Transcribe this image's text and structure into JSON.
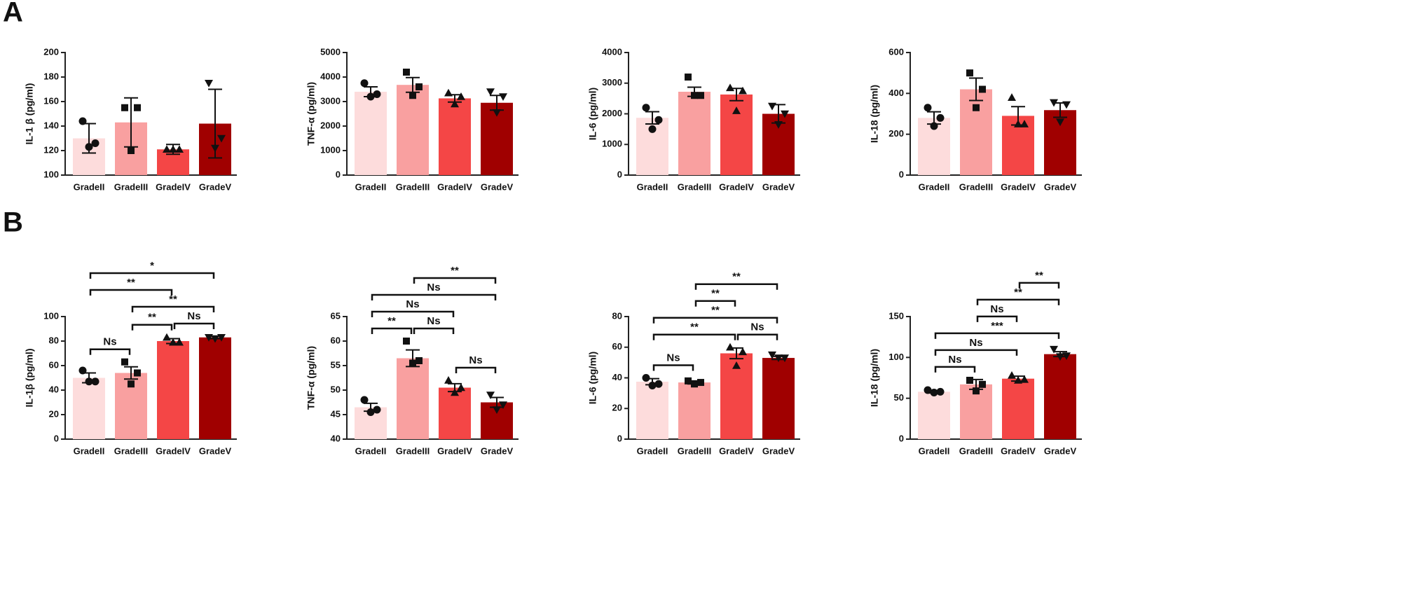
{
  "panel_labels": [
    "A",
    "B"
  ],
  "chart_data": [
    {
      "type": "bar",
      "ylabel": "IL-1 β (pg/ml)",
      "categories": [
        "GradeII",
        "GradeIII",
        "GradeIV",
        "GradeV"
      ],
      "colors": [
        "#fddcdc",
        "#f9a0a0",
        "#f44646",
        "#a00000"
      ],
      "markers": [
        "circle",
        "square",
        "triangle-up",
        "triangle-down"
      ],
      "values": [
        130,
        143,
        121,
        142
      ],
      "errors": [
        12,
        20,
        4,
        28
      ],
      "points": [
        [
          144,
          126,
          123
        ],
        [
          155,
          155,
          120
        ],
        [
          121,
          121,
          121
        ],
        [
          175,
          130,
          122
        ]
      ],
      "ylim": [
        100,
        200
      ],
      "yticks": [
        100,
        120,
        140,
        160,
        180,
        200
      ],
      "annotations": []
    },
    {
      "type": "bar",
      "ylabel": "TNF-α (pg/ml)",
      "categories": [
        "GradeII",
        "GradeIII",
        "GradeIV",
        "GradeV"
      ],
      "colors": [
        "#fddcdc",
        "#f9a0a0",
        "#f44646",
        "#a00000"
      ],
      "markers": [
        "circle",
        "square",
        "triangle-up",
        "triangle-down"
      ],
      "values": [
        3400,
        3680,
        3130,
        2950
      ],
      "errors": [
        200,
        300,
        150,
        300
      ],
      "points": [
        [
          3750,
          3300,
          3200
        ],
        [
          4200,
          3600,
          3250
        ],
        [
          3350,
          3200,
          2900
        ],
        [
          3400,
          3200,
          2550
        ]
      ],
      "ylim": [
        0,
        5000
      ],
      "yticks": [
        0,
        1000,
        2000,
        3000,
        4000,
        5000
      ],
      "annotations": []
    },
    {
      "type": "bar",
      "ylabel": "IL-6 (pg/ml)",
      "categories": [
        "GradeII",
        "GradeIII",
        "GradeIV",
        "GradeV"
      ],
      "colors": [
        "#fddcdc",
        "#f9a0a0",
        "#f44646",
        "#a00000"
      ],
      "markers": [
        "circle",
        "square",
        "triangle-up",
        "triangle-down"
      ],
      "values": [
        1870,
        2720,
        2630,
        2000
      ],
      "errors": [
        200,
        150,
        200,
        300
      ],
      "points": [
        [
          2200,
          1800,
          1500
        ],
        [
          3200,
          2600,
          2600
        ],
        [
          2850,
          2750,
          2100
        ],
        [
          2250,
          2000,
          1650
        ]
      ],
      "ylim": [
        0,
        4000
      ],
      "yticks": [
        0,
        1000,
        2000,
        3000,
        4000
      ],
      "annotations": []
    },
    {
      "type": "bar",
      "ylabel": "IL-18 (pg/ml)",
      "categories": [
        "GradeII",
        "GradeIII",
        "GradeIV",
        "GradeV"
      ],
      "colors": [
        "#fddcdc",
        "#f9a0a0",
        "#f44646",
        "#a00000"
      ],
      "markers": [
        "circle",
        "square",
        "triangle-up",
        "triangle-down"
      ],
      "values": [
        280,
        420,
        290,
        318
      ],
      "errors": [
        30,
        55,
        45,
        35
      ],
      "points": [
        [
          330,
          280,
          240
        ],
        [
          500,
          420,
          330
        ],
        [
          380,
          250,
          250
        ],
        [
          355,
          345,
          260
        ]
      ],
      "ylim": [
        0,
        600
      ],
      "yticks": [
        0,
        200,
        400,
        600
      ],
      "annotations": []
    },
    {
      "type": "bar",
      "ylabel": "IL-1β (pg/ml)",
      "categories": [
        "GradeII",
        "GradeIII",
        "GradeIV",
        "GradeV"
      ],
      "colors": [
        "#fddcdc",
        "#f9a0a0",
        "#f44646",
        "#a00000"
      ],
      "markers": [
        "circle",
        "square",
        "triangle-up",
        "triangle-down"
      ],
      "values": [
        50,
        54,
        80,
        83
      ],
      "errors": [
        4,
        5,
        2,
        1
      ],
      "points": [
        [
          56,
          47,
          47
        ],
        [
          63,
          54,
          45
        ],
        [
          83,
          79,
          79
        ],
        [
          83,
          83,
          82
        ]
      ],
      "ylim": [
        0,
        100
      ],
      "yticks": [
        0,
        20,
        40,
        60,
        80,
        100
      ],
      "annotations": [
        {
          "start": "GradeII",
          "end": "GradeIII",
          "label": "Ns"
        },
        {
          "start": "GradeIII",
          "end": "GradeIV",
          "label": "**"
        },
        {
          "start": "GradeIV",
          "end": "GradeV",
          "label": "Ns"
        },
        {
          "start": "GradeIII",
          "end": "GradeV",
          "label": "**"
        },
        {
          "start": "GradeII",
          "end": "GradeIV",
          "label": "**"
        },
        {
          "start": "GradeII",
          "end": "GradeV",
          "label": "*"
        }
      ]
    },
    {
      "type": "bar",
      "ylabel": "TNF-α (pg/ml)",
      "categories": [
        "GradeII",
        "GradeIII",
        "GradeIV",
        "GradeV"
      ],
      "colors": [
        "#fddcdc",
        "#f9a0a0",
        "#f44646",
        "#a00000"
      ],
      "markers": [
        "circle",
        "square",
        "triangle-up",
        "triangle-down"
      ],
      "values": [
        46.5,
        56.5,
        50.5,
        47.5
      ],
      "errors": [
        0.8,
        1.7,
        0.8,
        1
      ],
      "points": [
        [
          48,
          46,
          45.5
        ],
        [
          60,
          56,
          55.5
        ],
        [
          52,
          50.5,
          49.5
        ],
        [
          49,
          47,
          46
        ]
      ],
      "ylim": [
        40,
        65
      ],
      "yticks": [
        40,
        45,
        50,
        55,
        60,
        65
      ],
      "annotations": [
        {
          "start": "GradeIV",
          "end": "GradeV",
          "label": "Ns"
        },
        {
          "start": "GradeII",
          "end": "GradeIII",
          "label": "**"
        },
        {
          "start": "GradeIII",
          "end": "GradeIV",
          "label": "Ns"
        },
        {
          "start": "GradeII",
          "end": "GradeIV",
          "label": "Ns"
        },
        {
          "start": "GradeII",
          "end": "GradeV",
          "label": "Ns"
        },
        {
          "start": "GradeIII",
          "end": "GradeV",
          "label": "**"
        }
      ]
    },
    {
      "type": "bar",
      "ylabel": "IL-6 (pg/ml)",
      "categories": [
        "GradeII",
        "GradeIII",
        "GradeIV",
        "GradeV"
      ],
      "colors": [
        "#fddcdc",
        "#f9a0a0",
        "#f44646",
        "#a00000"
      ],
      "markers": [
        "circle",
        "square",
        "triangle-up",
        "triangle-down"
      ],
      "values": [
        37.5,
        37,
        56,
        53
      ],
      "errors": [
        2,
        1,
        3.5,
        1
      ],
      "points": [
        [
          40,
          36,
          35
        ],
        [
          38,
          37,
          36
        ],
        [
          60,
          57,
          48
        ],
        [
          55,
          53,
          53
        ]
      ],
      "ylim": [
        0,
        80
      ],
      "yticks": [
        0,
        20,
        40,
        60,
        80
      ],
      "annotations": [
        {
          "start": "GradeII",
          "end": "GradeIII",
          "label": "Ns"
        },
        {
          "start": "GradeII",
          "end": "GradeIV",
          "label": "**"
        },
        {
          "start": "GradeIV",
          "end": "GradeV",
          "label": "Ns"
        },
        {
          "start": "GradeII",
          "end": "GradeV",
          "label": "**"
        },
        {
          "start": "GradeIII",
          "end": "GradeIV",
          "label": "**"
        },
        {
          "start": "GradeIII",
          "end": "GradeV",
          "label": "**"
        }
      ]
    },
    {
      "type": "bar",
      "ylabel": "IL-18 (pg/ml)",
      "categories": [
        "GradeII",
        "GradeIII",
        "GradeIV",
        "GradeV"
      ],
      "colors": [
        "#fddcdc",
        "#f9a0a0",
        "#f44646",
        "#a00000"
      ],
      "markers": [
        "circle",
        "square",
        "triangle-up",
        "triangle-down"
      ],
      "values": [
        58,
        67,
        74,
        104
      ],
      "errors": [
        1.5,
        6,
        3,
        3
      ],
      "points": [
        [
          60,
          58,
          57
        ],
        [
          72,
          67,
          59
        ],
        [
          78,
          73,
          72
        ],
        [
          110,
          102,
          101
        ]
      ],
      "ylim": [
        0,
        150
      ],
      "yticks": [
        0,
        50,
        100,
        150
      ],
      "annotations": [
        {
          "start": "GradeII",
          "end": "GradeIII",
          "label": "Ns"
        },
        {
          "start": "GradeII",
          "end": "GradeIV",
          "label": "Ns"
        },
        {
          "start": "GradeII",
          "end": "GradeV",
          "label": "***"
        },
        {
          "start": "GradeIII",
          "end": "GradeIV",
          "label": "Ns"
        },
        {
          "start": "GradeIII",
          "end": "GradeV",
          "label": "**"
        },
        {
          "start": "GradeIV",
          "end": "GradeV",
          "label": "**"
        }
      ]
    }
  ]
}
